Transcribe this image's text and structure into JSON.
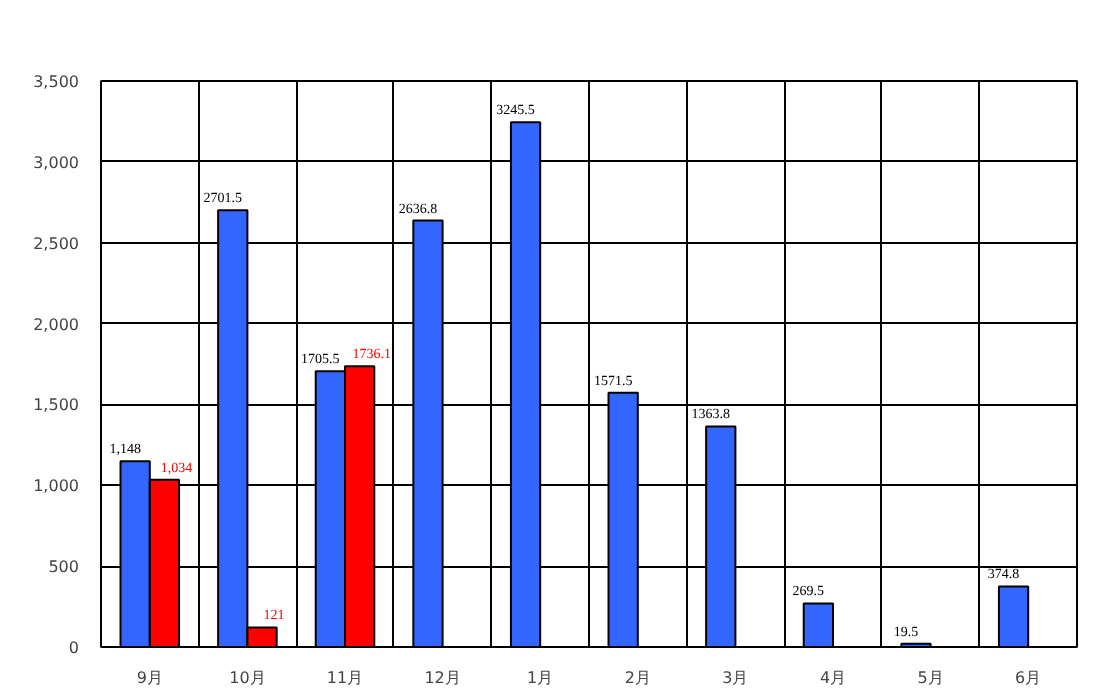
{
  "chart_data": {
    "type": "bar",
    "categories": [
      "9月",
      "10月",
      "11月",
      "12月",
      "1月",
      "2月",
      "3月",
      "4月",
      "5月",
      "6月"
    ],
    "series": [
      {
        "color": "#3366ff",
        "values": [
          1148,
          2701.5,
          1705.5,
          2636.8,
          3245.5,
          1571.5,
          1363.8,
          269.5,
          19.5,
          374.8
        ],
        "value_labels": [
          "1,148",
          "2701.5",
          "1705.5",
          "2636.8",
          "3245.5",
          "1571.5",
          "1363.8",
          "269.5",
          "19.5",
          "374.8"
        ]
      },
      {
        "color": "#ff0000",
        "values": [
          1034,
          121,
          1736.1,
          null,
          null,
          null,
          null,
          null,
          null,
          null
        ],
        "value_labels": [
          "1,034",
          "121",
          "1736.1",
          null,
          null,
          null,
          null,
          null,
          null,
          null
        ]
      }
    ],
    "ylim": [
      0,
      3500
    ],
    "yticks": [
      0,
      {
        "value": 500,
        "label": "500"
      },
      {
        "value": 1000,
        "label": "1,000"
      },
      {
        "value": 1500,
        "label": "1,500"
      },
      {
        "value": 2000,
        "label": "2,000"
      },
      {
        "value": 2500,
        "label": "2,500"
      },
      {
        "value": 3000,
        "label": "3,000"
      },
      {
        "value": 3500,
        "label": "3,500"
      }
    ],
    "grid": true
  }
}
